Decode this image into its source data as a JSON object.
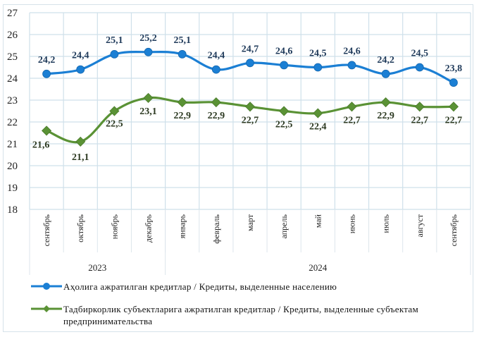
{
  "chart_data": {
    "type": "line",
    "title": "",
    "xlabel": "",
    "ylabel": "",
    "ylim": [
      18,
      27
    ],
    "yticks": [
      18,
      19,
      20,
      21,
      22,
      23,
      24,
      25,
      26,
      27
    ],
    "grid": true,
    "legend_position": "bottom",
    "categories": [
      "сентябрь",
      "октябрь",
      "ноябрь",
      "декабрь",
      "январь",
      "февраль",
      "март",
      "апрель",
      "май",
      "июнь",
      "июль",
      "август",
      "сентябрь"
    ],
    "year_groups": [
      {
        "label": "2023",
        "span": [
          0,
          3
        ]
      },
      {
        "label": "2024",
        "span": [
          4,
          12
        ]
      }
    ],
    "series": [
      {
        "name": "Аҳолига ажратилган кредитлар / Кредиты, выделенные населению",
        "color": "#1b7fd4",
        "marker": "circle",
        "values": [
          24.2,
          24.4,
          25.1,
          25.2,
          25.1,
          24.4,
          24.7,
          24.6,
          24.5,
          24.6,
          24.2,
          24.5,
          23.8
        ],
        "labels": [
          "24,2",
          "24,4",
          "25,1",
          "25,2",
          "25,1",
          "24,4",
          "24,7",
          "24,6",
          "24,5",
          "24,6",
          "24,2",
          "24,5",
          "23,8"
        ]
      },
      {
        "name": "Тадбиркорлик субъектларига ажратилган кредитлар / Кредиты, выделенные субъектам предпринимательства",
        "color": "#5a9235",
        "marker": "diamond",
        "values": [
          21.6,
          21.1,
          22.5,
          23.1,
          22.9,
          22.9,
          22.7,
          22.5,
          22.4,
          22.7,
          22.9,
          22.7,
          22.7
        ],
        "labels": [
          "21,6",
          "21,1",
          "22,5",
          "23,1",
          "22,9",
          "22,9",
          "22,7",
          "22,5",
          "22,4",
          "22,7",
          "22,9",
          "22,7",
          "22,7"
        ]
      }
    ]
  },
  "legend": {
    "items": [
      {
        "label": "Аҳолига ажратилган кредитлар / Кредиты, выделенные населению"
      },
      {
        "label": "Тадбиркорлик субъектларига ажратилган кредитлар / Кредиты, выделенные субъектам предпринимательства"
      }
    ]
  }
}
